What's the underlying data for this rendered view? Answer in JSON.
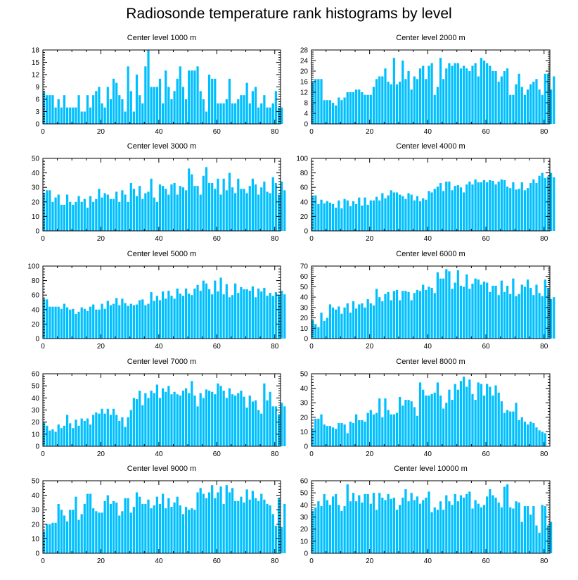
{
  "title": "Radiosonde temperature rank histograms by level",
  "colors": {
    "bar": "#00BFFF",
    "axis": "#000000",
    "background": "#ffffff"
  },
  "chart_data": [
    {
      "type": "bar",
      "title": "Center level 1000 m",
      "xlim": [
        0,
        82
      ],
      "ylim": [
        0,
        18
      ],
      "xticks": [
        0,
        20,
        40,
        60,
        80
      ],
      "yticks": [
        0,
        3,
        6,
        9,
        12,
        15,
        18
      ],
      "values": [
        8,
        7,
        7,
        7,
        4,
        6,
        4,
        7,
        4,
        4,
        4,
        4,
        7,
        3,
        3,
        7,
        4,
        7,
        8,
        9,
        5,
        4,
        9,
        6,
        11,
        10,
        7,
        6,
        3,
        14,
        8,
        3,
        12,
        7,
        5,
        14,
        18,
        9,
        9,
        9,
        11,
        5,
        13,
        9,
        6,
        8,
        11,
        14,
        9,
        6,
        13,
        13,
        13,
        14,
        8,
        6,
        3,
        12,
        11,
        11,
        5,
        5,
        5,
        6,
        11,
        5,
        5,
        6,
        7,
        7,
        10,
        5,
        8,
        9,
        4,
        5,
        7,
        4,
        4,
        5,
        8,
        4,
        4
      ]
    },
    {
      "type": "bar",
      "title": "Center level 2000 m",
      "xlim": [
        0,
        82
      ],
      "ylim": [
        0,
        28
      ],
      "xticks": [
        0,
        20,
        40,
        60,
        80
      ],
      "yticks": [
        0,
        4,
        8,
        12,
        16,
        20,
        24,
        28
      ],
      "values": [
        16,
        17,
        17,
        17,
        9,
        9,
        9,
        8,
        7,
        10,
        9,
        10,
        12,
        12,
        12,
        13,
        13,
        12,
        11,
        11,
        11,
        14,
        17,
        18,
        18,
        21,
        16,
        15,
        25,
        15,
        16,
        24,
        17,
        20,
        13,
        18,
        17,
        21,
        22,
        17,
        22,
        23,
        11,
        14,
        25,
        17,
        21,
        23,
        22,
        23,
        23,
        21,
        22,
        21,
        20,
        22,
        23,
        18,
        25,
        24,
        23,
        22,
        20,
        20,
        16,
        18,
        20,
        21,
        11,
        11,
        15,
        19,
        14,
        11,
        13,
        15,
        16,
        17,
        13,
        11,
        19,
        19,
        13,
        18
      ]
    },
    {
      "type": "bar",
      "title": "Center level 3000 m",
      "xlim": [
        0,
        82
      ],
      "ylim": [
        0,
        50
      ],
      "xticks": [
        0,
        20,
        40,
        60,
        80
      ],
      "yticks": [
        0,
        10,
        20,
        30,
        40,
        50
      ],
      "values": [
        26,
        28,
        28,
        20,
        23,
        25,
        18,
        18,
        25,
        20,
        18,
        20,
        24,
        20,
        22,
        16,
        24,
        20,
        22,
        29,
        23,
        26,
        25,
        22,
        22,
        27,
        20,
        28,
        25,
        20,
        33,
        29,
        24,
        31,
        22,
        26,
        27,
        36,
        23,
        20,
        32,
        31,
        29,
        25,
        32,
        33,
        25,
        31,
        30,
        28,
        43,
        39,
        31,
        31,
        25,
        38,
        44,
        33,
        33,
        29,
        36,
        25,
        36,
        28,
        40,
        30,
        26,
        36,
        29,
        29,
        26,
        31,
        36,
        32,
        25,
        30,
        34,
        27,
        26,
        37,
        33,
        25,
        34,
        28
      ]
    },
    {
      "type": "bar",
      "title": "Center level 4000 m",
      "xlim": [
        0,
        82
      ],
      "ylim": [
        0,
        100
      ],
      "xticks": [
        0,
        20,
        40,
        60,
        80
      ],
      "yticks": [
        0,
        20,
        40,
        60,
        80,
        100
      ],
      "values": [
        48,
        49,
        37,
        43,
        38,
        41,
        39,
        37,
        32,
        42,
        31,
        44,
        42,
        34,
        41,
        37,
        46,
        35,
        46,
        36,
        42,
        42,
        47,
        42,
        52,
        45,
        49,
        56,
        53,
        53,
        50,
        48,
        44,
        52,
        50,
        42,
        48,
        41,
        45,
        43,
        55,
        53,
        58,
        61,
        66,
        55,
        68,
        68,
        56,
        62,
        63,
        60,
        53,
        64,
        68,
        64,
        71,
        67,
        67,
        70,
        67,
        70,
        69,
        64,
        68,
        71,
        70,
        61,
        59,
        67,
        57,
        58,
        67,
        56,
        59,
        66,
        71,
        66,
        76,
        80,
        73,
        75,
        80,
        74
      ]
    },
    {
      "type": "bar",
      "title": "Center level 5000 m",
      "xlim": [
        0,
        82
      ],
      "ylim": [
        0,
        100
      ],
      "xticks": [
        0,
        20,
        40,
        60,
        80
      ],
      "yticks": [
        0,
        20,
        40,
        60,
        80,
        100
      ],
      "values": [
        55,
        54,
        44,
        44,
        44,
        44,
        41,
        48,
        43,
        40,
        41,
        34,
        37,
        43,
        41,
        38,
        44,
        47,
        40,
        40,
        48,
        41,
        52,
        46,
        48,
        56,
        46,
        55,
        49,
        45,
        48,
        46,
        47,
        53,
        54,
        46,
        48,
        64,
        52,
        59,
        53,
        65,
        55,
        66,
        59,
        55,
        69,
        62,
        59,
        69,
        62,
        60,
        69,
        74,
        66,
        80,
        76,
        68,
        61,
        80,
        65,
        84,
        61,
        75,
        57,
        60,
        76,
        63,
        71,
        68,
        68,
        66,
        72,
        57,
        69,
        65,
        70,
        59,
        63,
        59,
        64,
        60,
        66,
        61
      ]
    },
    {
      "type": "bar",
      "title": "Center level 6000 m",
      "xlim": [
        0,
        82
      ],
      "ylim": [
        0,
        70
      ],
      "xticks": [
        0,
        20,
        40,
        60,
        80
      ],
      "yticks": [
        0,
        10,
        20,
        30,
        40,
        50,
        60,
        70
      ],
      "values": [
        18,
        14,
        11,
        25,
        17,
        20,
        33,
        30,
        28,
        31,
        24,
        30,
        34,
        25,
        36,
        29,
        33,
        34,
        30,
        38,
        34,
        32,
        48,
        40,
        36,
        43,
        45,
        37,
        46,
        47,
        37,
        46,
        46,
        45,
        37,
        44,
        47,
        46,
        52,
        47,
        50,
        49,
        44,
        64,
        58,
        58,
        67,
        65,
        48,
        54,
        66,
        51,
        50,
        62,
        48,
        53,
        58,
        57,
        52,
        55,
        54,
        45,
        51,
        51,
        42,
        56,
        45,
        51,
        43,
        58,
        41,
        43,
        52,
        50,
        57,
        49,
        42,
        52,
        44,
        41,
        57,
        49,
        38,
        40
      ]
    },
    {
      "type": "bar",
      "title": "Center level 7000 m",
      "xlim": [
        0,
        82
      ],
      "ylim": [
        0,
        60
      ],
      "xticks": [
        0,
        20,
        40,
        60,
        80
      ],
      "yticks": [
        0,
        10,
        20,
        30,
        40,
        50,
        60
      ],
      "values": [
        20,
        17,
        13,
        14,
        12,
        18,
        15,
        17,
        26,
        19,
        15,
        22,
        17,
        23,
        21,
        23,
        18,
        26,
        28,
        27,
        31,
        27,
        31,
        26,
        31,
        26,
        21,
        24,
        16,
        24,
        30,
        40,
        39,
        46,
        34,
        44,
        40,
        46,
        44,
        51,
        40,
        48,
        45,
        50,
        43,
        45,
        43,
        42,
        46,
        48,
        44,
        54,
        42,
        33,
        44,
        40,
        47,
        46,
        45,
        43,
        52,
        50,
        46,
        40,
        48,
        43,
        42,
        44,
        46,
        41,
        32,
        42,
        37,
        38,
        30,
        27,
        52,
        38,
        45,
        33,
        33,
        26,
        36,
        33
      ]
    },
    {
      "type": "bar",
      "title": "Center level 8000 m",
      "xlim": [
        0,
        82
      ],
      "ylim": [
        0,
        50
      ],
      "xticks": [
        0,
        20,
        40,
        60,
        80
      ],
      "yticks": [
        0,
        10,
        20,
        30,
        40,
        50
      ],
      "values": [
        12,
        19,
        19,
        22,
        15,
        14,
        14,
        13,
        12,
        16,
        16,
        15,
        9,
        17,
        16,
        22,
        18,
        18,
        17,
        23,
        25,
        22,
        23,
        33,
        20,
        33,
        25,
        22,
        22,
        23,
        34,
        28,
        32,
        32,
        31,
        27,
        21,
        44,
        39,
        35,
        35,
        36,
        37,
        44,
        35,
        26,
        30,
        39,
        32,
        43,
        39,
        45,
        48,
        41,
        46,
        36,
        32,
        44,
        43,
        35,
        43,
        41,
        35,
        42,
        37,
        31,
        23,
        25,
        24,
        24,
        30,
        18,
        20,
        17,
        15,
        17,
        16,
        13,
        11,
        10,
        9
      ]
    },
    {
      "type": "bar",
      "title": "Center level 9000 m",
      "xlim": [
        0,
        82
      ],
      "ylim": [
        0,
        50
      ],
      "xticks": [
        0,
        20,
        40,
        60,
        80
      ],
      "yticks": [
        0,
        10,
        20,
        30,
        40,
        50
      ],
      "values": [
        15,
        20,
        20,
        21,
        21,
        34,
        30,
        26,
        22,
        30,
        30,
        39,
        23,
        27,
        34,
        41,
        41,
        31,
        29,
        28,
        28,
        36,
        40,
        34,
        36,
        35,
        26,
        29,
        38,
        38,
        28,
        32,
        42,
        39,
        34,
        34,
        37,
        31,
        33,
        39,
        34,
        41,
        31,
        38,
        32,
        35,
        39,
        33,
        27,
        32,
        30,
        31,
        30,
        42,
        45,
        41,
        38,
        42,
        47,
        38,
        42,
        46,
        34,
        47,
        42,
        45,
        36,
        36,
        39,
        35,
        44,
        37,
        43,
        38,
        36,
        41,
        37,
        34,
        33,
        27,
        19,
        38,
        18,
        34
      ]
    },
    {
      "type": "bar",
      "title": "Center level 10000 m",
      "xlim": [
        0,
        82
      ],
      "ylim": [
        0,
        60
      ],
      "xticks": [
        0,
        20,
        40,
        60,
        80
      ],
      "yticks": [
        0,
        10,
        20,
        30,
        40,
        50,
        60
      ],
      "values": [
        35,
        38,
        43,
        39,
        49,
        44,
        40,
        47,
        49,
        40,
        35,
        39,
        57,
        43,
        50,
        43,
        48,
        42,
        49,
        49,
        41,
        50,
        36,
        50,
        46,
        44,
        49,
        45,
        46,
        36,
        40,
        46,
        53,
        43,
        50,
        44,
        47,
        41,
        44,
        46,
        51,
        34,
        38,
        36,
        43,
        36,
        48,
        43,
        40,
        49,
        43,
        48,
        46,
        49,
        51,
        37,
        44,
        41,
        38,
        40,
        47,
        53,
        48,
        46,
        42,
        38,
        55,
        57,
        38,
        37,
        43,
        42,
        26,
        39,
        39,
        32,
        39,
        23,
        17,
        40,
        39,
        23,
        26
      ]
    }
  ]
}
